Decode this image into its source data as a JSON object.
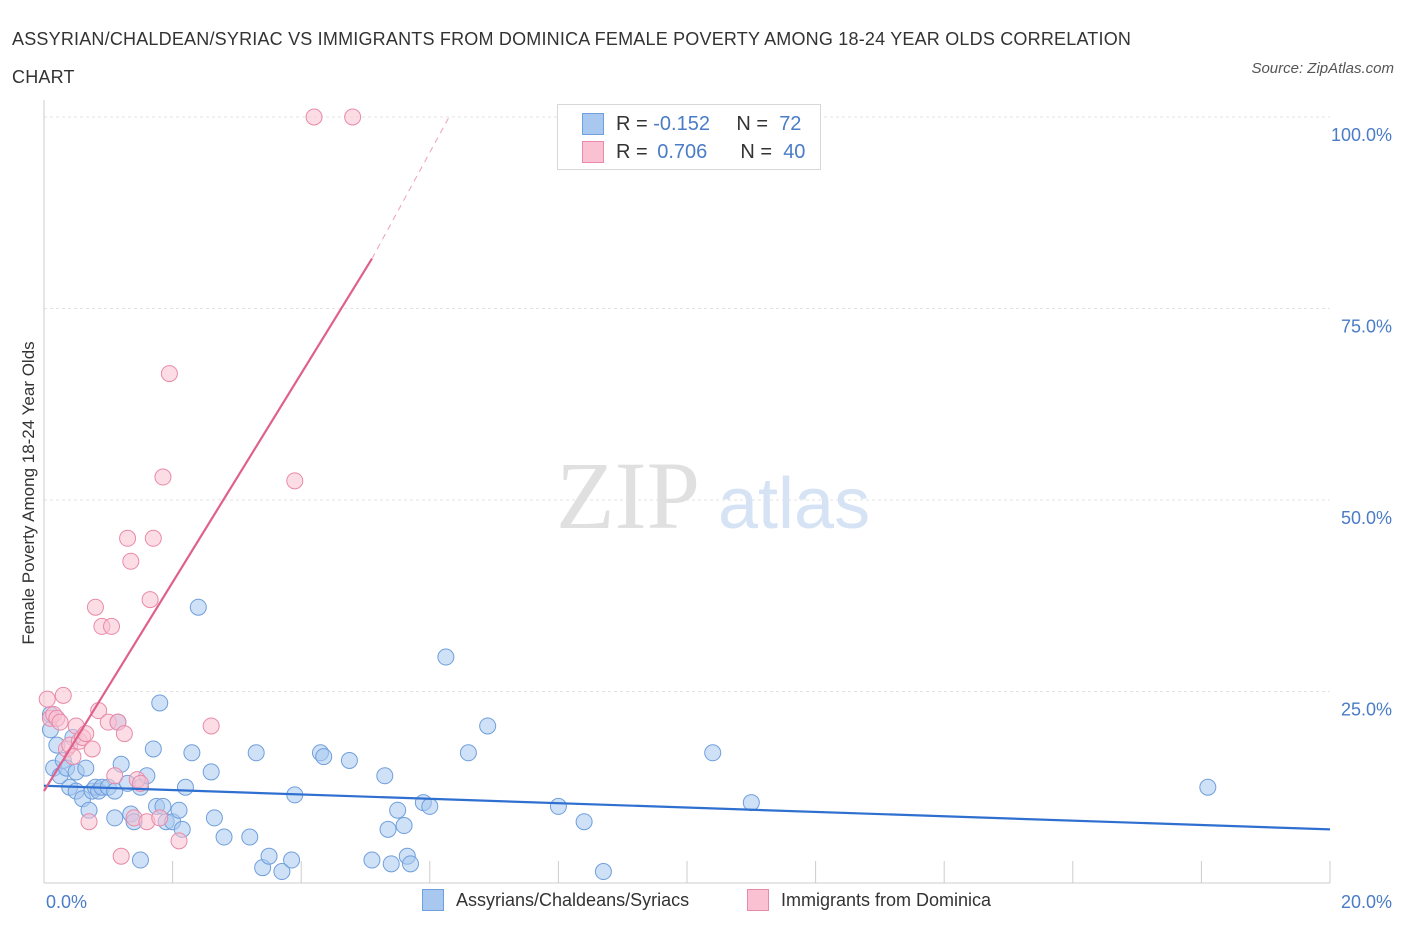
{
  "title": "ASSYRIAN/CHALDEAN/SYRIAC VS IMMIGRANTS FROM DOMINICA FEMALE POVERTY AMONG 18-24 YEAR OLDS CORRELATION CHART",
  "source": "Source: ZipAtlas.com",
  "watermark": {
    "zip": "ZIP",
    "atlas": "atlas"
  },
  "legend": {
    "rows": [
      {
        "r_label": "R =",
        "r_value": "-0.152",
        "n_label": "N =",
        "n_value": "72",
        "color": "#a8c8f0",
        "border": "#6f9fdc"
      },
      {
        "r_label": "R =",
        "r_value": "0.706",
        "n_label": "N =",
        "n_value": "40",
        "color": "#f9c1d2",
        "border": "#e88aa8"
      }
    ]
  },
  "bottom_legend": [
    {
      "label": "Assyrians/Chaldeans/Syriacs",
      "color": "#a8c8f0",
      "border": "#6f9fdc"
    },
    {
      "label": "Immigrants from Dominica",
      "color": "#f9c1d2",
      "border": "#e88aa8"
    }
  ],
  "chart_data": {
    "type": "scatter",
    "title": "ASSYRIAN/CHALDEAN/SYRIAC VS IMMIGRANTS FROM DOMINICA FEMALE POVERTY AMONG 18-24 YEAR OLDS CORRELATION CHART",
    "xlabel": "",
    "ylabel": "Female Poverty Among 18-24 Year Olds",
    "xlim": [
      0,
      20
    ],
    "ylim": [
      0,
      100
    ],
    "x_tick_labels": [
      {
        "value": 0,
        "label": "0.0%"
      },
      {
        "value": 20,
        "label": "20.0%"
      }
    ],
    "y_tick_labels": [
      {
        "value": 25,
        "label": "25.0%"
      },
      {
        "value": 50,
        "label": "50.0%"
      },
      {
        "value": 75,
        "label": "75.0%"
      },
      {
        "value": 100,
        "label": "100.0%"
      }
    ],
    "grid": true,
    "legend_position": "top-center",
    "series": [
      {
        "name": "Assyrians/Chaldeans/Syriacs",
        "color": "#a8c8f0",
        "stroke": "#6f9fdc",
        "trend": {
          "x": [
            0,
            20
          ],
          "y": [
            12.7,
            7.0
          ],
          "color": "#2f6fd0"
        },
        "points": [
          [
            0.1,
            20.0
          ],
          [
            0.1,
            22.0
          ],
          [
            0.15,
            15.0
          ],
          [
            0.2,
            18.0
          ],
          [
            0.25,
            14.0
          ],
          [
            0.3,
            16.0
          ],
          [
            0.35,
            15.0
          ],
          [
            0.4,
            12.5
          ],
          [
            0.45,
            19.0
          ],
          [
            0.5,
            14.5
          ],
          [
            0.5,
            12.0
          ],
          [
            0.6,
            11.0
          ],
          [
            0.65,
            15.0
          ],
          [
            0.7,
            9.5
          ],
          [
            0.75,
            12.0
          ],
          [
            0.8,
            12.5
          ],
          [
            0.85,
            12.0
          ],
          [
            0.9,
            12.5
          ],
          [
            1.0,
            12.5
          ],
          [
            1.1,
            12.0
          ],
          [
            1.1,
            8.5
          ],
          [
            1.15,
            21.0
          ],
          [
            1.2,
            15.5
          ],
          [
            1.3,
            13.0
          ],
          [
            1.35,
            9.0
          ],
          [
            1.4,
            8.0
          ],
          [
            1.5,
            12.5
          ],
          [
            1.5,
            3.0
          ],
          [
            1.6,
            14.0
          ],
          [
            1.7,
            17.5
          ],
          [
            1.75,
            10.0
          ],
          [
            1.8,
            23.5
          ],
          [
            1.85,
            10.0
          ],
          [
            1.9,
            8.0
          ],
          [
            2.0,
            8.0
          ],
          [
            2.1,
            9.5
          ],
          [
            2.15,
            7.0
          ],
          [
            2.2,
            12.5
          ],
          [
            2.3,
            17.0
          ],
          [
            2.4,
            36.0
          ],
          [
            2.6,
            14.5
          ],
          [
            2.65,
            8.5
          ],
          [
            2.8,
            6.0
          ],
          [
            3.2,
            6.0
          ],
          [
            3.3,
            17.0
          ],
          [
            3.4,
            2.0
          ],
          [
            3.5,
            3.5
          ],
          [
            3.7,
            1.5
          ],
          [
            3.85,
            3.0
          ],
          [
            3.9,
            11.5
          ],
          [
            4.3,
            17.0
          ],
          [
            4.35,
            16.5
          ],
          [
            4.75,
            16.0
          ],
          [
            5.1,
            3.0
          ],
          [
            5.3,
            14.0
          ],
          [
            5.35,
            7.0
          ],
          [
            5.4,
            2.5
          ],
          [
            5.5,
            9.5
          ],
          [
            5.6,
            7.5
          ],
          [
            5.65,
            3.5
          ],
          [
            5.7,
            2.5
          ],
          [
            5.9,
            10.5
          ],
          [
            6.0,
            10.0
          ],
          [
            6.25,
            29.5
          ],
          [
            6.6,
            17.0
          ],
          [
            6.9,
            20.5
          ],
          [
            8.0,
            10.0
          ],
          [
            8.4,
            8.0
          ],
          [
            8.7,
            1.5
          ],
          [
            10.4,
            17.0
          ],
          [
            11.0,
            10.5
          ],
          [
            18.1,
            12.5
          ]
        ]
      },
      {
        "name": "Immigrants from Dominica",
        "color": "#f9c1d2",
        "stroke": "#e88aa8",
        "trend": {
          "x": [
            0,
            5.1
          ],
          "y": [
            12.0,
            81.5
          ],
          "dashed_to": {
            "x": 6.3,
            "y": 100
          },
          "color": "#e0608c"
        },
        "points": [
          [
            0.05,
            24.0
          ],
          [
            0.1,
            21.5
          ],
          [
            0.15,
            22.0
          ],
          [
            0.2,
            21.5
          ],
          [
            0.25,
            21.0
          ],
          [
            0.3,
            24.5
          ],
          [
            0.35,
            17.5
          ],
          [
            0.4,
            18.0
          ],
          [
            0.45,
            16.5
          ],
          [
            0.5,
            20.5
          ],
          [
            0.55,
            18.5
          ],
          [
            0.6,
            19.0
          ],
          [
            0.65,
            19.5
          ],
          [
            0.7,
            8.0
          ],
          [
            0.75,
            17.5
          ],
          [
            0.8,
            36.0
          ],
          [
            0.85,
            22.5
          ],
          [
            0.9,
            33.5
          ],
          [
            1.0,
            21.0
          ],
          [
            1.05,
            33.5
          ],
          [
            1.1,
            14.0
          ],
          [
            1.15,
            21.0
          ],
          [
            1.2,
            3.5
          ],
          [
            1.25,
            19.5
          ],
          [
            1.3,
            45.0
          ],
          [
            1.35,
            42.0
          ],
          [
            1.4,
            8.5
          ],
          [
            1.45,
            13.5
          ],
          [
            1.5,
            13.0
          ],
          [
            1.6,
            8.0
          ],
          [
            1.65,
            37.0
          ],
          [
            1.7,
            45.0
          ],
          [
            1.8,
            8.5
          ],
          [
            1.85,
            53.0
          ],
          [
            1.95,
            66.5
          ],
          [
            2.1,
            5.5
          ],
          [
            2.6,
            20.5
          ],
          [
            3.9,
            52.5
          ],
          [
            4.2,
            100.0
          ],
          [
            4.8,
            100.0
          ]
        ]
      }
    ]
  }
}
